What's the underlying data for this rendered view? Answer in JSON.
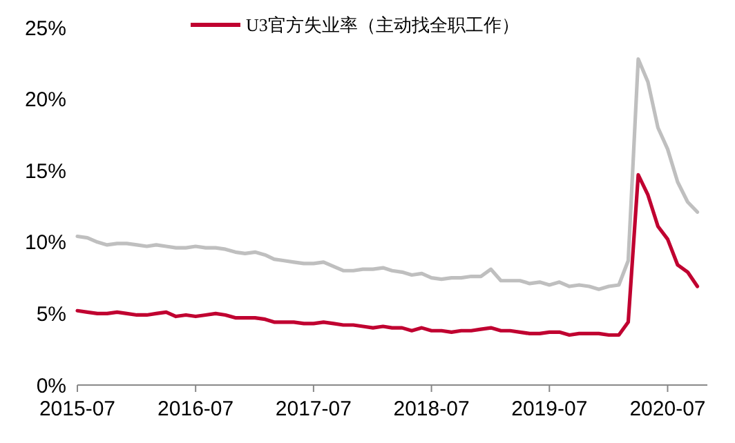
{
  "chart_data": {
    "type": "line",
    "x": [
      "2015-07",
      "2015-08",
      "2015-09",
      "2015-10",
      "2015-11",
      "2015-12",
      "2016-01",
      "2016-02",
      "2016-03",
      "2016-04",
      "2016-05",
      "2016-06",
      "2016-07",
      "2016-08",
      "2016-09",
      "2016-10",
      "2016-11",
      "2016-12",
      "2017-01",
      "2017-02",
      "2017-03",
      "2017-04",
      "2017-05",
      "2017-06",
      "2017-07",
      "2017-08",
      "2017-09",
      "2017-10",
      "2017-11",
      "2017-12",
      "2018-01",
      "2018-02",
      "2018-03",
      "2018-04",
      "2018-05",
      "2018-06",
      "2018-07",
      "2018-08",
      "2018-09",
      "2018-10",
      "2018-11",
      "2018-12",
      "2019-01",
      "2019-02",
      "2019-03",
      "2019-04",
      "2019-05",
      "2019-06",
      "2019-07",
      "2019-08",
      "2019-09",
      "2019-10",
      "2019-11",
      "2019-12",
      "2020-01",
      "2020-02",
      "2020-03",
      "2020-04",
      "2020-05",
      "2020-06",
      "2020-07",
      "2020-08",
      "2020-09",
      "2020-10"
    ],
    "series": [
      {
        "color": "#bfbfbf",
        "values": [
          10.4,
          10.3,
          10.0,
          9.8,
          9.9,
          9.9,
          9.8,
          9.7,
          9.8,
          9.7,
          9.6,
          9.6,
          9.7,
          9.6,
          9.6,
          9.5,
          9.3,
          9.2,
          9.3,
          9.1,
          8.8,
          8.7,
          8.6,
          8.5,
          8.5,
          8.6,
          8.3,
          8.0,
          8.0,
          8.1,
          8.1,
          8.2,
          8.0,
          7.9,
          7.7,
          7.8,
          7.5,
          7.4,
          7.5,
          7.5,
          7.6,
          7.6,
          8.1,
          7.3,
          7.3,
          7.3,
          7.1,
          7.2,
          7.0,
          7.2,
          6.9,
          7.0,
          6.9,
          6.7,
          6.9,
          7.0,
          8.7,
          22.8,
          21.2,
          18.0,
          16.5,
          14.2,
          12.8,
          12.1
        ]
      },
      {
        "name": "U3官方失业率（主动找全职工作）",
        "color": "#c00030",
        "values": [
          5.2,
          5.1,
          5.0,
          5.0,
          5.1,
          5.0,
          4.9,
          4.9,
          5.0,
          5.1,
          4.8,
          4.9,
          4.8,
          4.9,
          5.0,
          4.9,
          4.7,
          4.7,
          4.7,
          4.6,
          4.4,
          4.4,
          4.4,
          4.3,
          4.3,
          4.4,
          4.3,
          4.2,
          4.2,
          4.1,
          4.0,
          4.1,
          4.0,
          4.0,
          3.8,
          4.0,
          3.8,
          3.8,
          3.7,
          3.8,
          3.8,
          3.9,
          4.0,
          3.8,
          3.8,
          3.7,
          3.6,
          3.6,
          3.7,
          3.7,
          3.5,
          3.6,
          3.6,
          3.6,
          3.5,
          3.5,
          4.4,
          14.7,
          13.3,
          11.1,
          10.2,
          8.4,
          7.9,
          6.9
        ]
      }
    ],
    "xlim": [
      "2015-07",
      "2020-11"
    ],
    "xticks": [
      "2015-07",
      "2016-07",
      "2017-07",
      "2018-07",
      "2019-07",
      "2020-07"
    ],
    "ylim": [
      0,
      25
    ],
    "yticks": [
      {
        "value": 0,
        "label": "0%"
      },
      {
        "value": 5,
        "label": "5%"
      },
      {
        "value": 10,
        "label": "10%"
      },
      {
        "value": 15,
        "label": "15%"
      },
      {
        "value": 20,
        "label": "20%"
      },
      {
        "value": 25,
        "label": "25%"
      }
    ],
    "grid": false,
    "legend": "top",
    "line_style": "solid",
    "marker": "none"
  }
}
